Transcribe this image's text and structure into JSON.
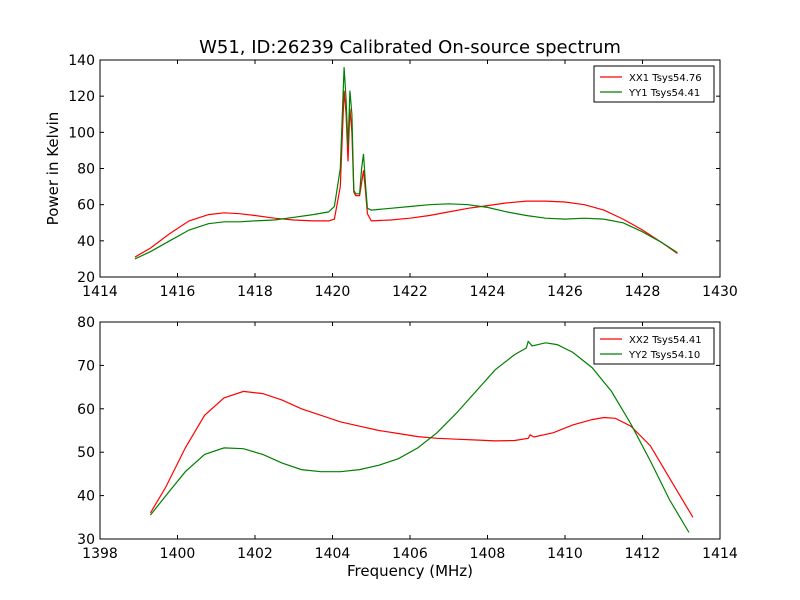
{
  "figure": {
    "title": "W51, ID:26239 Calibrated On-source spectrum"
  },
  "chart_data": [
    {
      "type": "line",
      "xlabel": "",
      "ylabel": "Power in Kelvin",
      "xlim": [
        1414,
        1430
      ],
      "ylim": [
        20,
        140
      ],
      "xticks": [
        1414,
        1416,
        1418,
        1420,
        1422,
        1424,
        1426,
        1428,
        1430
      ],
      "yticks": [
        20,
        40,
        60,
        80,
        100,
        120,
        140
      ],
      "legend_position": "top-right",
      "series": [
        {
          "name": "XX1 Tsys54.76",
          "color": "#ff0000",
          "x": [
            1414.9,
            1415.3,
            1415.8,
            1416.3,
            1416.8,
            1417.2,
            1417.6,
            1418.0,
            1418.5,
            1419.0,
            1419.5,
            1419.9,
            1420.05,
            1420.2,
            1420.3,
            1420.35,
            1420.4,
            1420.45,
            1420.5,
            1420.55,
            1420.6,
            1420.7,
            1420.75,
            1420.8,
            1420.85,
            1420.9,
            1421.0,
            1421.5,
            1422.0,
            1422.5,
            1423.0,
            1423.5,
            1424.0,
            1424.5,
            1425.0,
            1425.5,
            1426.0,
            1426.5,
            1427.0,
            1427.5,
            1428.0,
            1428.5,
            1428.9
          ],
          "values": [
            31,
            36,
            44,
            51,
            54.5,
            55.5,
            55,
            54,
            52.5,
            51.5,
            51,
            51,
            52,
            70,
            123,
            110,
            84,
            113,
            100,
            67,
            65,
            65,
            72,
            79,
            68,
            55,
            51,
            51.5,
            52.5,
            54,
            56,
            58,
            59.5,
            61,
            62,
            62,
            61.5,
            60,
            57,
            52,
            46,
            39,
            33
          ]
        },
        {
          "name": "YY1 Tsys54.41",
          "color": "#008000",
          "x": [
            1414.9,
            1415.3,
            1415.8,
            1416.3,
            1416.8,
            1417.2,
            1417.6,
            1418.0,
            1418.5,
            1419.0,
            1419.5,
            1419.9,
            1420.05,
            1420.2,
            1420.3,
            1420.35,
            1420.4,
            1420.45,
            1420.5,
            1420.55,
            1420.6,
            1420.7,
            1420.75,
            1420.8,
            1420.85,
            1420.9,
            1421.0,
            1421.5,
            1422.0,
            1422.5,
            1423.0,
            1423.5,
            1424.0,
            1424.5,
            1425.0,
            1425.5,
            1426.0,
            1426.5,
            1427.0,
            1427.5,
            1428.0,
            1428.5,
            1428.9
          ],
          "values": [
            30,
            34,
            40,
            46,
            49.5,
            50.5,
            50.5,
            51,
            51.5,
            53,
            54.5,
            56,
            59,
            80,
            136,
            118,
            92,
            123,
            110,
            68,
            66,
            66,
            80,
            88,
            72,
            58,
            57,
            58,
            59,
            60,
            60.5,
            60,
            58.5,
            56,
            54,
            52.5,
            52,
            52.5,
            52,
            50,
            45,
            39,
            33.5
          ]
        }
      ]
    },
    {
      "type": "line",
      "xlabel": "Frequency (MHz)",
      "ylabel": "",
      "xlim": [
        1398,
        1414
      ],
      "ylim": [
        30,
        80
      ],
      "xticks": [
        1398,
        1400,
        1402,
        1404,
        1406,
        1408,
        1410,
        1412,
        1414
      ],
      "yticks": [
        30,
        40,
        50,
        60,
        70,
        80
      ],
      "legend_position": "top-right",
      "series": [
        {
          "name": "XX2 Tsys54.41",
          "color": "#ff0000",
          "x": [
            1399.3,
            1399.7,
            1400.2,
            1400.7,
            1401.2,
            1401.7,
            1402.2,
            1402.7,
            1403.2,
            1403.7,
            1404.2,
            1404.7,
            1405.2,
            1405.7,
            1406.2,
            1406.7,
            1407.2,
            1407.7,
            1408.2,
            1408.7,
            1409.05,
            1409.1,
            1409.2,
            1409.7,
            1410.2,
            1410.7,
            1411.0,
            1411.3,
            1411.7,
            1412.2,
            1412.7,
            1413.3
          ],
          "values": [
            36,
            42,
            51,
            58.5,
            62.5,
            64,
            63.5,
            62,
            60,
            58.5,
            57,
            56,
            55,
            54.3,
            53.6,
            53.2,
            53,
            52.8,
            52.6,
            52.7,
            53.2,
            54,
            53.5,
            54.5,
            56.3,
            57.5,
            58,
            57.8,
            56,
            51.5,
            44,
            35
          ]
        },
        {
          "name": "YY2 Tsys54.10",
          "color": "#008000",
          "x": [
            1399.3,
            1399.7,
            1400.2,
            1400.7,
            1401.2,
            1401.7,
            1402.2,
            1402.7,
            1403.2,
            1403.7,
            1404.2,
            1404.7,
            1405.2,
            1405.7,
            1406.2,
            1406.7,
            1407.2,
            1407.7,
            1408.2,
            1408.7,
            1409.0,
            1409.05,
            1409.15,
            1409.5,
            1409.8,
            1410.2,
            1410.7,
            1411.2,
            1411.7,
            1412.2,
            1412.7,
            1413.2
          ],
          "values": [
            35.5,
            40,
            45.5,
            49.5,
            51,
            50.8,
            49.5,
            47.5,
            46,
            45.5,
            45.5,
            46,
            47,
            48.5,
            51,
            54.5,
            59,
            64,
            69,
            72.5,
            74,
            75.5,
            74.5,
            75.2,
            74.8,
            73,
            69.5,
            64,
            56.5,
            48,
            39,
            31.5
          ]
        }
      ]
    }
  ]
}
